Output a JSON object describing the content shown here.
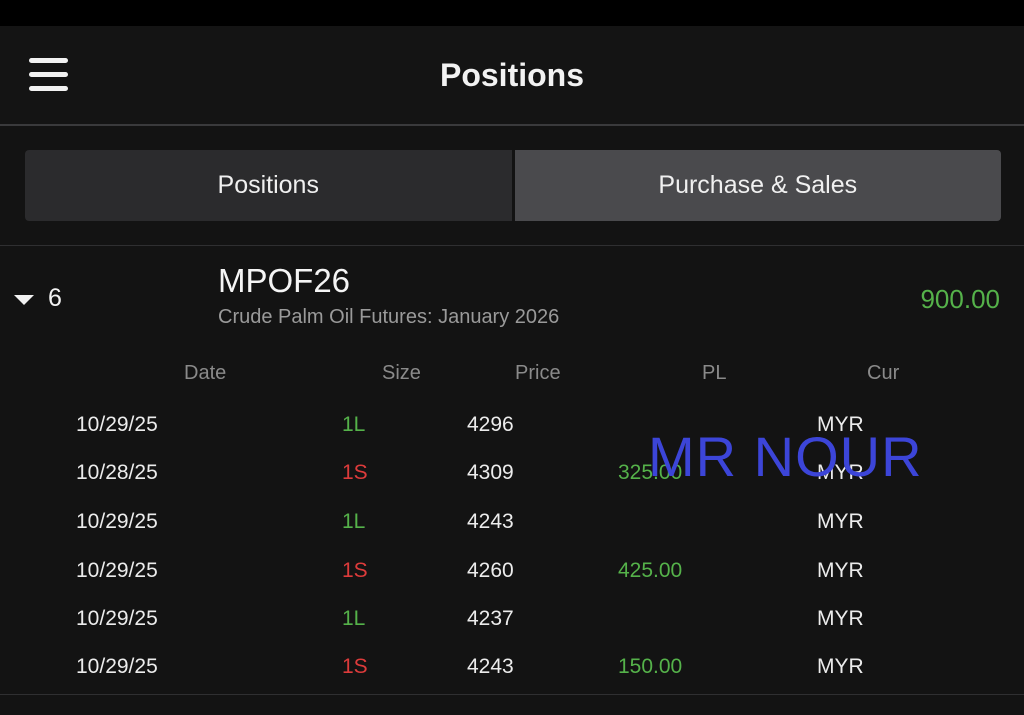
{
  "header": {
    "title": "Positions"
  },
  "tabs": [
    {
      "label": "Positions"
    },
    {
      "label": "Purchase & Sales"
    }
  ],
  "group": {
    "count": "6",
    "symbol": "MPOF26",
    "description": "Crude Palm Oil Futures: January 2026",
    "total_pl": "900.00"
  },
  "columns": {
    "date": "Date",
    "size": "Size",
    "price": "Price",
    "pl": "PL",
    "cur": "Cur"
  },
  "trades": [
    {
      "date": "10/29/25",
      "size": "1L",
      "side": "long",
      "price": "4296",
      "pl": "",
      "cur": "MYR"
    },
    {
      "date": "10/28/25",
      "size": "1S",
      "side": "short",
      "price": "4309",
      "pl": "325.00",
      "cur": "MYR"
    },
    {
      "date": "10/29/25",
      "size": "1L",
      "side": "long",
      "price": "4243",
      "pl": "",
      "cur": "MYR"
    },
    {
      "date": "10/29/25",
      "size": "1S",
      "side": "short",
      "price": "4260",
      "pl": "425.00",
      "cur": "MYR"
    },
    {
      "date": "10/29/25",
      "size": "1L",
      "side": "long",
      "price": "4237",
      "pl": "",
      "cur": "MYR"
    },
    {
      "date": "10/29/25",
      "size": "1S",
      "side": "short",
      "price": "4243",
      "pl": "150.00",
      "cur": "MYR"
    }
  ],
  "watermark": "MR NOUR",
  "colors": {
    "background": "#131313",
    "gain": "#55b24a",
    "loss": "#dd3b3b",
    "watermark": "#3c45d8",
    "active_tab": "#4a4a4d"
  },
  "icons": {
    "menu": "hamburger-menu-icon",
    "expand": "caret-down-icon"
  }
}
